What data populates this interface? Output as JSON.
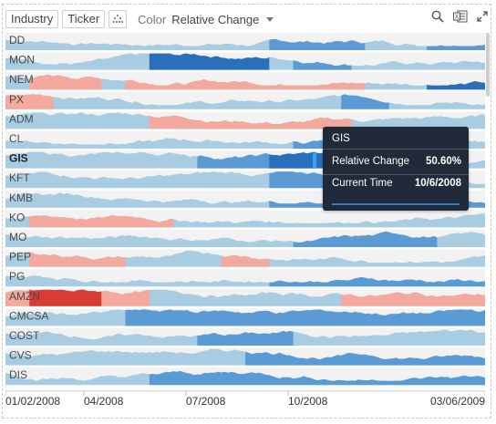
{
  "toolbar": {
    "industry_label": "Industry",
    "ticker_label": "Ticker",
    "color_label": "Color",
    "color_value": "Relative Change"
  },
  "icons": [
    "scatter-icon",
    "search-icon",
    "excel-export-icon",
    "expand-icon",
    "dropdown-caret-icon"
  ],
  "colors": {
    "neutral": "#a8cde3",
    "mid_blue": "#5b9bd5",
    "dark_blue": "#2a6fba",
    "light_red": "#f4a99e",
    "dark_red": "#d93b35",
    "row_bg": "#f2f2f2",
    "tooltip_bg": "#202a38"
  },
  "chart_data": {
    "type": "area",
    "series": [
      {
        "name": "DD"
      },
      {
        "name": "MON"
      },
      {
        "name": "NEM"
      },
      {
        "name": "PX"
      },
      {
        "name": "ADM"
      },
      {
        "name": "CL"
      },
      {
        "name": "GIS"
      },
      {
        "name": "KFT"
      },
      {
        "name": "KMB"
      },
      {
        "name": "KO"
      },
      {
        "name": "MO"
      },
      {
        "name": "PEP"
      },
      {
        "name": "PG"
      },
      {
        "name": "AMZN"
      },
      {
        "name": "CMCSA"
      },
      {
        "name": "COST"
      },
      {
        "name": "CVS"
      },
      {
        "name": "DIS"
      }
    ],
    "x_tick_labels": [
      "01/02/2008",
      "04/2008",
      "07/2008",
      "10/2008",
      "03/06/2009"
    ],
    "x_range": [
      "01/02/2008",
      "03/06/2009"
    ],
    "color_by": "Relative Change"
  },
  "tooltip": {
    "title": "GIS",
    "rows": [
      {
        "label": "Relative Change",
        "value": "50.60%"
      },
      {
        "label": "Current Time",
        "value": "10/6/2008"
      }
    ]
  }
}
